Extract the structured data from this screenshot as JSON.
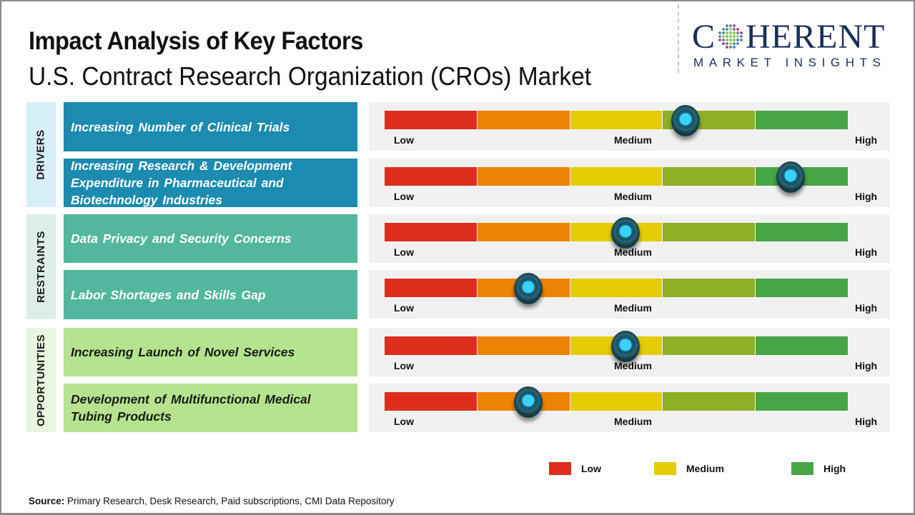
{
  "header": {
    "title": "Impact Analysis of Key Factors",
    "subtitle": "U.S. Contract Research Organization (CROs) Market"
  },
  "logo": {
    "brand_prefix": "C",
    "brand_suffix": "HERENT",
    "tagline": "MARKET INSIGHTS",
    "icon": "globe-dots-icon"
  },
  "colors": {
    "segments": [
      "#dd2e1b",
      "#ec8303",
      "#e5cd06",
      "#90ae26",
      "#46a646"
    ],
    "drivers": "#1b8bb0",
    "restraints": "#52b79c",
    "opportunities": "#b5e38f",
    "legend_low": "#dd2e1b",
    "legend_medium": "#e5cd06",
    "legend_high": "#46a646"
  },
  "scale_labels": {
    "low": "Low",
    "medium": "Medium",
    "high": "High"
  },
  "categories": {
    "drivers": "DRIVERS",
    "restraints": "RESTRAINTS",
    "opportunities": "OPPORTUNITIES"
  },
  "factors": [
    {
      "category": "drivers",
      "label": "Increasing Number of Clinical Trials",
      "impact": 0.65
    },
    {
      "category": "drivers",
      "label": "Increasing Research & Development Expenditure in Pharmaceutical and Biotechnology Industries",
      "impact": 0.877
    },
    {
      "category": "restraints",
      "label": "Data Privacy and Security Concerns",
      "impact": 0.52
    },
    {
      "category": "restraints",
      "label": "Labor Shortages and Skills Gap",
      "impact": 0.31
    },
    {
      "category": "opportunities",
      "label": "Increasing Launch of Novel Services",
      "impact": 0.52
    },
    {
      "category": "opportunities",
      "label": "Development of Multifunctional Medical Tubing Products",
      "impact": 0.31
    }
  ],
  "legend": [
    {
      "label": "Low"
    },
    {
      "label": "Medium"
    },
    {
      "label": "High"
    }
  ],
  "source": {
    "prefix": "Source:",
    "text": " Primary Research, Desk Research, Paid subscriptions, CMI Data Repository"
  }
}
